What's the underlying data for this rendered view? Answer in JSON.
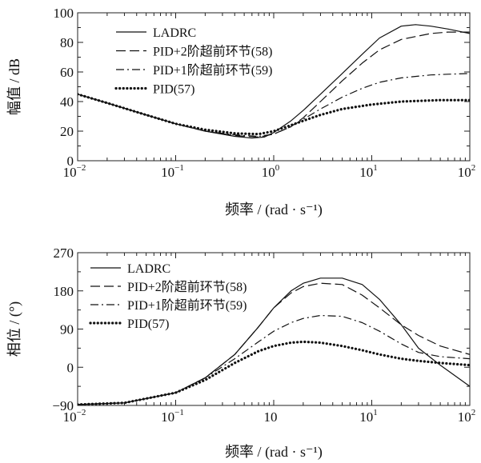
{
  "chart_data": [
    {
      "type": "line",
      "x_scale": "log",
      "xlim": [
        0.01,
        100
      ],
      "ylim": [
        0,
        100
      ],
      "xlabel": "频率 / (rad · s⁻¹)",
      "ylabel": "幅值 / dB",
      "x_ticks": [
        {
          "value": 0.01,
          "base": "10",
          "exp": "−2"
        },
        {
          "value": 0.1,
          "base": "10",
          "exp": "−1"
        },
        {
          "value": 1,
          "base": "10",
          "exp": "0"
        },
        {
          "value": 10,
          "base": "10",
          "exp": "1"
        },
        {
          "value": 100,
          "base": "10",
          "exp": "2"
        }
      ],
      "y_ticks": [
        "0",
        "20",
        "40",
        "60",
        "80",
        "100"
      ],
      "legend_position": "top-left",
      "series": [
        {
          "name": "LADRC",
          "style": "solid",
          "x": [
            0.01,
            0.02,
            0.05,
            0.1,
            0.2,
            0.4,
            0.6,
            0.8,
            1,
            1.5,
            2,
            3,
            5,
            8,
            12,
            20,
            28,
            40,
            60,
            100
          ],
          "y": [
            45,
            39,
            31,
            25,
            20,
            16.5,
            15.3,
            16,
            19,
            27,
            34,
            45,
            59,
            72,
            83,
            91,
            92,
            91,
            89,
            86
          ]
        },
        {
          "name": "PID+2阶超前环节(58)",
          "style": "dashed",
          "x": [
            0.01,
            0.02,
            0.05,
            0.1,
            0.2,
            0.4,
            0.7,
            1,
            1.5,
            2,
            3,
            5,
            8,
            12,
            20,
            40,
            60,
            100
          ],
          "y": [
            45,
            39,
            31,
            25,
            20,
            17,
            16,
            18,
            23,
            29,
            40,
            54,
            66,
            75,
            82,
            86,
            87,
            87
          ]
        },
        {
          "name": "PID+1阶超前环节(59)",
          "style": "dash-dot",
          "x": [
            0.01,
            0.02,
            0.05,
            0.1,
            0.2,
            0.4,
            0.7,
            1,
            1.5,
            2,
            3,
            5,
            8,
            12,
            20,
            40,
            60,
            100
          ],
          "y": [
            45,
            39,
            31,
            25,
            20,
            17.5,
            16.5,
            18,
            23,
            28,
            35,
            43,
            49,
            53,
            56,
            58,
            58.5,
            59
          ]
        },
        {
          "name": "PID(57)",
          "style": "dotted",
          "x": [
            0.01,
            0.02,
            0.05,
            0.1,
            0.2,
            0.4,
            0.7,
            1,
            1.5,
            2,
            3,
            5,
            10,
            20,
            50,
            100
          ],
          "y": [
            45,
            39,
            31,
            25,
            21,
            18.5,
            18,
            20,
            24,
            27,
            31,
            35,
            38,
            40,
            41,
            41
          ]
        }
      ]
    },
    {
      "type": "line",
      "x_scale": "log",
      "xlim": [
        0.01,
        100
      ],
      "ylim": [
        -90,
        270
      ],
      "xlabel": "频率 / (rad · s⁻¹)",
      "ylabel": "相位 / (°)",
      "x_ticks": [
        {
          "value": 0.01,
          "base": "10",
          "exp": "−2"
        },
        {
          "value": 0.1,
          "base": "10",
          "exp": "−1"
        },
        {
          "value": 1,
          "base": "10",
          "exp": ""
        },
        {
          "value": 10,
          "base": "10",
          "exp": "1"
        },
        {
          "value": 100,
          "base": "10",
          "exp": "2"
        }
      ],
      "y_ticks": [
        "−90",
        "0",
        "90",
        "180",
        "270"
      ],
      "legend_position": "top-left",
      "series": [
        {
          "name": "LADRC",
          "style": "solid",
          "x": [
            0.01,
            0.03,
            0.1,
            0.2,
            0.4,
            0.7,
            1,
            1.5,
            2,
            3,
            5,
            8,
            12,
            20,
            30,
            50,
            100
          ],
          "y": [
            -88,
            -84,
            -60,
            -25,
            30,
            95,
            140,
            180,
            198,
            210,
            210,
            195,
            160,
            100,
            45,
            5,
            -45
          ]
        },
        {
          "name": "PID+2阶超前环节(58)",
          "style": "dashed",
          "x": [
            0.01,
            0.03,
            0.1,
            0.2,
            0.4,
            0.7,
            1,
            1.5,
            2,
            3,
            5,
            8,
            12,
            20,
            30,
            50,
            100
          ],
          "y": [
            -88,
            -84,
            -60,
            -25,
            30,
            95,
            140,
            175,
            190,
            198,
            195,
            170,
            140,
            100,
            75,
            50,
            30
          ]
        },
        {
          "name": "PID+1阶超前环节(59)",
          "style": "dash-dot",
          "x": [
            0.01,
            0.03,
            0.1,
            0.2,
            0.4,
            0.7,
            1,
            1.5,
            2,
            3,
            5,
            8,
            12,
            20,
            30,
            50,
            100
          ],
          "y": [
            -88,
            -84,
            -60,
            -25,
            20,
            60,
            85,
            105,
            115,
            122,
            120,
            105,
            85,
            55,
            35,
            25,
            20
          ]
        },
        {
          "name": "PID(57)",
          "style": "dotted",
          "x": [
            0.01,
            0.03,
            0.1,
            0.2,
            0.4,
            0.7,
            1,
            1.5,
            2,
            3,
            5,
            8,
            12,
            20,
            30,
            50,
            100
          ],
          "y": [
            -88,
            -84,
            -60,
            -30,
            10,
            38,
            50,
            58,
            60,
            58,
            50,
            40,
            30,
            20,
            15,
            10,
            5
          ]
        }
      ]
    }
  ]
}
